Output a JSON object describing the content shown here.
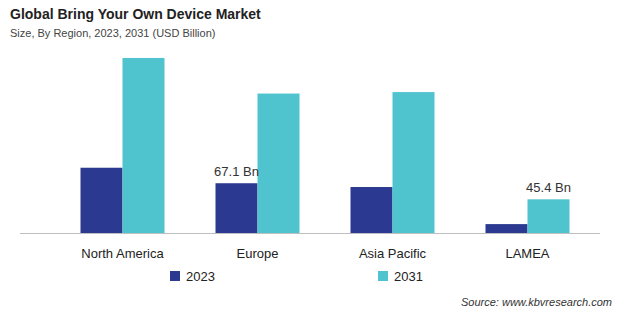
{
  "chart_data": {
    "type": "bar",
    "title": "Global Bring Your Own Device Market",
    "subtitle": "Size, By Region, 2023, 2031 (USD Billion)",
    "source": "Source: www.kbvresearch.com",
    "categories": [
      "North America",
      "Europe",
      "Asia Pacific",
      "LAMEA"
    ],
    "series": [
      {
        "name": "2023",
        "color": "#2b3990",
        "values": [
          88,
          67.1,
          62,
          12
        ],
        "value_labels": [
          null,
          "67.1 Bn",
          null,
          null
        ]
      },
      {
        "name": "2031",
        "color": "#4fc4cf",
        "values": [
          236,
          188,
          190,
          45.4
        ],
        "value_labels": [
          null,
          null,
          null,
          "45.4 Bn"
        ]
      }
    ],
    "ylim": [
      0,
      240
    ],
    "tick_labels": "x",
    "grid": false,
    "legend": "bottom"
  }
}
